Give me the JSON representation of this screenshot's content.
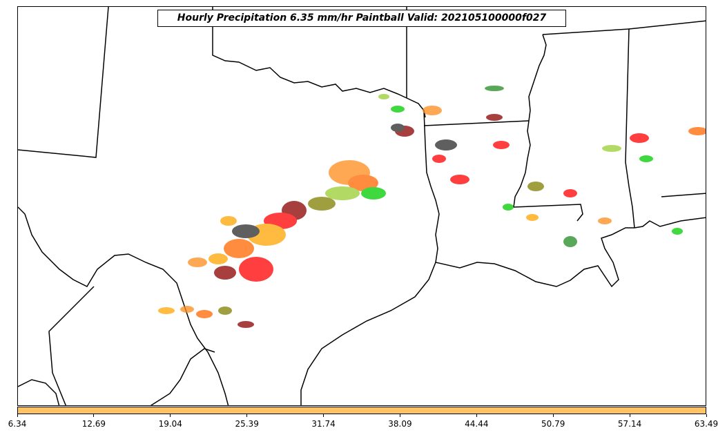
{
  "title": "Hourly Precipitation 6.35 mm/hr Paintball Valid: 202105100000f027",
  "colorbar": {
    "color": "#ffc266",
    "ticks": [
      "6.34",
      "12.69",
      "19.04",
      "25.39",
      "31.74",
      "38.09",
      "44.44",
      "50.79",
      "57.14",
      "63.49"
    ]
  },
  "map": {
    "region": "Texas, Oklahoma, Louisiana, Arkansas, Mississippi, Alabama and northern Mexico",
    "boundary_color": "#000000",
    "paintball_colors": [
      "#2a2a2a",
      "#8b0000",
      "#ff0000",
      "#ff6600",
      "#ff8c1a",
      "#ffa500",
      "#9acd32",
      "#808000",
      "#00cc00",
      "#228b22",
      "#555555"
    ]
  }
}
